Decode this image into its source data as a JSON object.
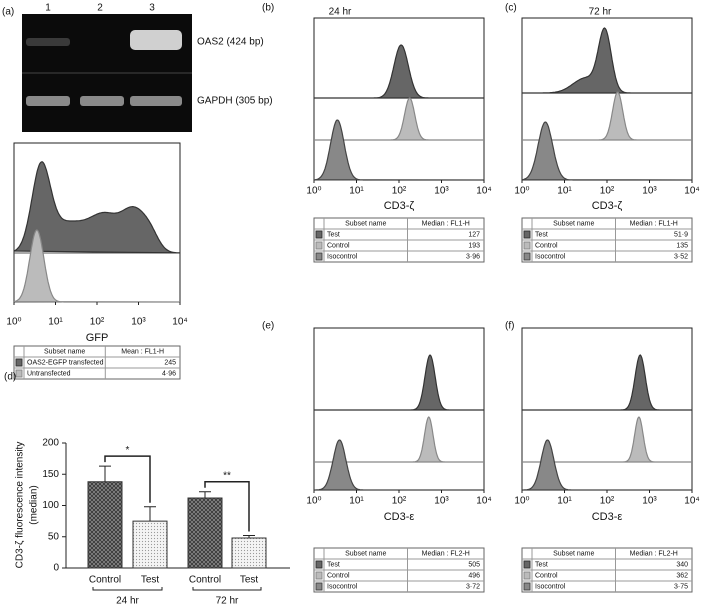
{
  "panels": {
    "a": {
      "label": "(a)",
      "lanes": [
        "1",
        "2",
        "3"
      ],
      "bands": [
        "OAS2 (424 bp)",
        "GAPDH (305 bp)"
      ],
      "xticks": [
        "10⁰",
        "10¹",
        "10²",
        "10³",
        "10⁴"
      ],
      "xlabel": "GFP",
      "table": {
        "header": [
          "Subset name",
          "Mean : FL1-H"
        ],
        "rows": [
          [
            "OAS2-EGFP transfected",
            "245"
          ],
          [
            "Untransfected",
            "4·96"
          ]
        ]
      }
    },
    "b": {
      "label": "(b)",
      "title": "24 hr",
      "xticks": [
        "10⁰",
        "10¹",
        "10²",
        "10³",
        "10⁴"
      ],
      "xlabel": "CD3-ζ",
      "table": {
        "header": [
          "Subset name",
          "Median : FL1-H"
        ],
        "rows": [
          [
            "Test",
            "127"
          ],
          [
            "Control",
            "193"
          ],
          [
            "Isocontrol",
            "3·96"
          ]
        ]
      }
    },
    "c": {
      "label": "(c)",
      "title": "72 hr",
      "xticks": [
        "10⁰",
        "10¹",
        "10²",
        "10³",
        "10⁴"
      ],
      "xlabel": "CD3-ζ",
      "table": {
        "header": [
          "Subset name",
          "Median : FL1-H"
        ],
        "rows": [
          [
            "Test",
            "51·9"
          ],
          [
            "Control",
            "135"
          ],
          [
            "Isocontrol",
            "3·52"
          ]
        ]
      }
    },
    "e": {
      "label": "(e)",
      "xticks": [
        "10⁰",
        "10¹",
        "10²",
        "10³",
        "10⁴"
      ],
      "xlabel": "CD3-ε",
      "table": {
        "header": [
          "Subset name",
          "Median : FL2-H"
        ],
        "rows": [
          [
            "Test",
            "505"
          ],
          [
            "Control",
            "496"
          ],
          [
            "Isocontrol",
            "3·72"
          ]
        ]
      }
    },
    "f": {
      "label": "(f)",
      "xticks": [
        "10⁰",
        "10¹",
        "10²",
        "10³",
        "10⁴"
      ],
      "xlabel": "CD3-ε",
      "table": {
        "header": [
          "Subset name",
          "Median : FL2-H"
        ],
        "rows": [
          [
            "Test",
            "340"
          ],
          [
            "Control",
            "362"
          ],
          [
            "Isocontrol",
            "3·75"
          ]
        ]
      }
    }
  },
  "chart_data": [
    {
      "type": "bar",
      "label": "(d)",
      "ylabel": [
        "CD3-ζ fluorescence intensity",
        "(median)"
      ],
      "categories": [
        "Control",
        "Test",
        "Control",
        "Test"
      ],
      "values": [
        138,
        75,
        112,
        48
      ],
      "errors": [
        25,
        23,
        10,
        4
      ],
      "ylim": [
        0,
        200
      ],
      "yticks": [
        0,
        50,
        100,
        150,
        200
      ],
      "groups": [
        "24 hr",
        "72 hr"
      ],
      "annotations": [
        "*",
        "**"
      ]
    }
  ]
}
